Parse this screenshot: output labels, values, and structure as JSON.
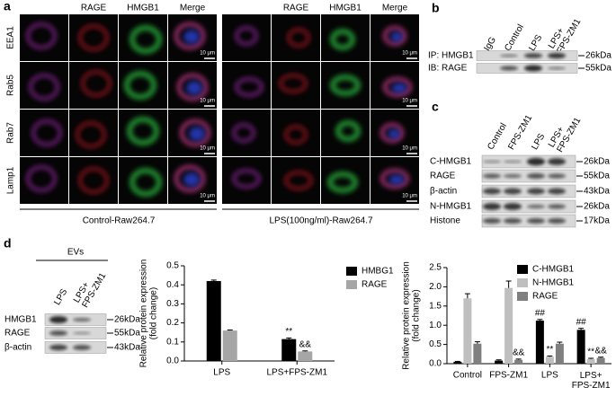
{
  "panel_labels": [
    "a",
    "b",
    "c",
    "d"
  ],
  "panel_a": {
    "groups": [
      {
        "columns": [
          "RAGE",
          "HMGB1",
          "Merge"
        ],
        "rows": [
          "EEA1",
          "Rab5",
          "Rab7",
          "Lamp1"
        ],
        "scale_bars": [
          "10 μm",
          "10 μm",
          "10 μm",
          "10 μm"
        ],
        "caption": "Control-Raw264.7"
      },
      {
        "columns": [
          "RAGE",
          "HMGB1",
          "Merge"
        ],
        "scale_bars": [
          "10 μm",
          "10 μm",
          "10 μm",
          "10 μm"
        ],
        "caption": "LPS(100ng/ml)-Raw264.7"
      }
    ]
  },
  "panel_b": {
    "lanes": [
      "IgG",
      "Control",
      "LPS",
      "LPS+\nFPS-ZM1"
    ],
    "rows": [
      {
        "label": "IP: HMGB1",
        "size": "26kDa"
      },
      {
        "label": "IB:  RAGE",
        "size": "55kDa"
      }
    ]
  },
  "panel_c": {
    "lanes": [
      "Control",
      "FPS-ZM1",
      "LPS",
      "LPS+\nFPS-ZM1"
    ],
    "rows": [
      {
        "label": "C-HMGB1",
        "size": "26kDa"
      },
      {
        "label": "RAGE",
        "size": "55kDa"
      },
      {
        "label": "β-actin",
        "size": "43kDa"
      },
      {
        "label": "N-HMGB1",
        "size": "26kDa"
      },
      {
        "label": "Histone",
        "size": "17kDa"
      }
    ]
  },
  "panel_d_blot": {
    "title": "EVs",
    "lanes": [
      "LPS",
      "LPS+\nFPS-ZM1"
    ],
    "rows": [
      {
        "label": "HMGB1",
        "size": "26kDa"
      },
      {
        "label": "RAGE",
        "size": "55kDa"
      },
      {
        "label": "β-actin",
        "size": "43kDa"
      }
    ]
  },
  "chart_data": [
    {
      "type": "bar",
      "ylabel": "Relative protein expression\n(fold change)",
      "categories": [
        "LPS",
        "LPS+FPS-ZM1"
      ],
      "series": [
        {
          "name": "HMBG1",
          "color": "#000000",
          "values": [
            0.42,
            0.115
          ],
          "errors": [
            0.005,
            0.006
          ]
        },
        {
          "name": "RAGE",
          "color": "#a6a6a6",
          "values": [
            0.16,
            0.05
          ],
          "errors": [
            0.003,
            0.003
          ]
        }
      ],
      "ylim": [
        0,
        0.5
      ],
      "yticks": [
        {
          "value": 0,
          "label": "0.0"
        },
        0.1,
        0.2,
        0.3,
        0.4,
        0.5
      ],
      "annotations": [
        {
          "text": "**",
          "category": "LPS+FPS-ZM1",
          "series": "HMBG1"
        },
        {
          "text": "&&",
          "category": "LPS+FPS-ZM1",
          "series": "RAGE"
        }
      ]
    },
    {
      "type": "bar",
      "ylabel": "Relative protein expression\n(fold change)",
      "categories": [
        "Control",
        "FPS-ZM1",
        "LPS",
        "LPS+\nFPS-ZM1"
      ],
      "series": [
        {
          "name": "C-HMGB1",
          "color": "#000000",
          "values": [
            0.05,
            0.08,
            1.12,
            0.88
          ],
          "errors": [
            0.01,
            0.02,
            0.03,
            0.04
          ]
        },
        {
          "name": "N-HMGB1",
          "color": "#bfbfbf",
          "values": [
            1.7,
            1.97,
            0.18,
            0.12
          ],
          "errors": [
            0.12,
            0.18,
            0.02,
            0.02
          ]
        },
        {
          "name": "RAGE",
          "color": "#7f7f7f",
          "values": [
            0.52,
            0.1,
            0.52,
            0.15
          ],
          "errors": [
            0.05,
            0.02,
            0.04,
            0.02
          ]
        }
      ],
      "ylim": [
        0,
        2.5
      ],
      "yticks": [
        {
          "value": 0,
          "label": "0.0"
        },
        0.5,
        {
          "value": 1,
          "label": "1.0"
        },
        1.5,
        {
          "value": 2,
          "label": "2.0"
        },
        2.5
      ],
      "annotations": [
        {
          "text": "&&",
          "category": "FPS-ZM1",
          "series": "RAGE"
        },
        {
          "text": "##",
          "category": "LPS",
          "series": "C-HMGB1"
        },
        {
          "text": "**",
          "category": "LPS",
          "series": "N-HMGB1"
        },
        {
          "text": "##",
          "category": "LPS+\nFPS-ZM1",
          "series": "C-HMGB1"
        },
        {
          "text": "**",
          "category": "LPS+\nFPS-ZM1",
          "series": "N-HMGB1"
        },
        {
          "text": "&&",
          "category": "LPS+\nFPS-ZM1",
          "series": "RAGE"
        }
      ]
    }
  ]
}
